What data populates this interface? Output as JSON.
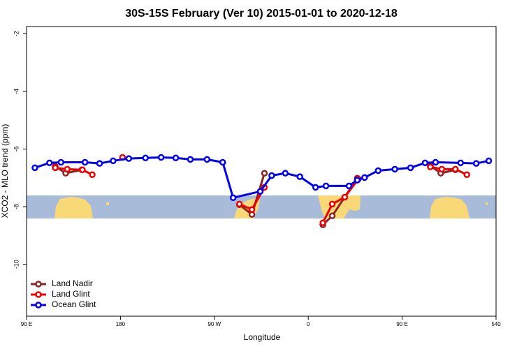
{
  "chart_data": {
    "type": "line",
    "title": "30S-15S February (Ver 10)   2015-01-01 to 2020-12-18",
    "x_label": "Longitude",
    "y_label": "XCO2 - MLO trend (ppm)",
    "xlim": [
      90,
      540
    ],
    "ylim": [
      -11.8,
      -1.75
    ],
    "xticks": [
      {
        "value": 90,
        "label": "90 E"
      },
      180,
      {
        "value": 270,
        "label": "90 W"
      },
      {
        "value": 360,
        "label": "0"
      },
      {
        "value": 450,
        "label": "90 E"
      },
      540
    ],
    "yticks": [
      -2,
      -4,
      -6,
      -8,
      -10
    ],
    "grid": false,
    "legend": "bottom-left",
    "series": [
      {
        "name": "Land Nadir",
        "color": "#8b2525",
        "x": [
          117.5,
          127.5,
          143,
          null,
          294,
          306,
          318,
          null,
          374,
          383,
          407,
          null,
          477,
          487,
          501
        ],
        "values": [
          -6.6,
          -6.84,
          -6.72,
          null,
          -7.93,
          -8.27,
          -6.84,
          null,
          -8.63,
          -8.32,
          -7.01,
          null,
          -6.58,
          -6.84,
          -6.72
        ]
      },
      {
        "name": "Land Glint",
        "color": "#ee0000",
        "x": [
          117.5,
          129,
          143.5,
          153,
          null,
          182,
          null,
          294,
          306,
          318,
          null,
          374,
          383,
          395,
          408,
          null,
          477,
          488,
          501,
          512
        ],
        "values": [
          -6.65,
          -6.7,
          -6.72,
          -6.89,
          null,
          -6.29,
          null,
          -7.91,
          -8.1,
          -7.33,
          null,
          -8.56,
          -7.91,
          -7.67,
          -7.04,
          null,
          -6.62,
          -6.7,
          -6.7,
          -6.89
        ]
      },
      {
        "name": "Ocean Glint",
        "color": "#0000ee",
        "x": [
          98,
          112,
          123,
          146,
          160,
          173,
          188,
          204,
          219,
          233,
          247,
          263,
          278,
          288,
          314,
          325,
          338,
          352,
          367,
          377,
          399,
          407,
          414,
          427,
          443,
          458,
          472,
          482,
          506,
          521,
          533
        ],
        "values": [
          -6.65,
          -6.48,
          -6.46,
          -6.46,
          -6.5,
          -6.41,
          -6.33,
          -6.31,
          -6.29,
          -6.31,
          -6.36,
          -6.36,
          -6.46,
          -7.69,
          -7.47,
          -6.92,
          -6.84,
          -6.96,
          -7.33,
          -7.28,
          -7.28,
          -7.08,
          -6.99,
          -6.75,
          -6.7,
          -6.65,
          -6.48,
          -6.46,
          -6.48,
          -6.5,
          -6.41
        ]
      }
    ]
  }
}
